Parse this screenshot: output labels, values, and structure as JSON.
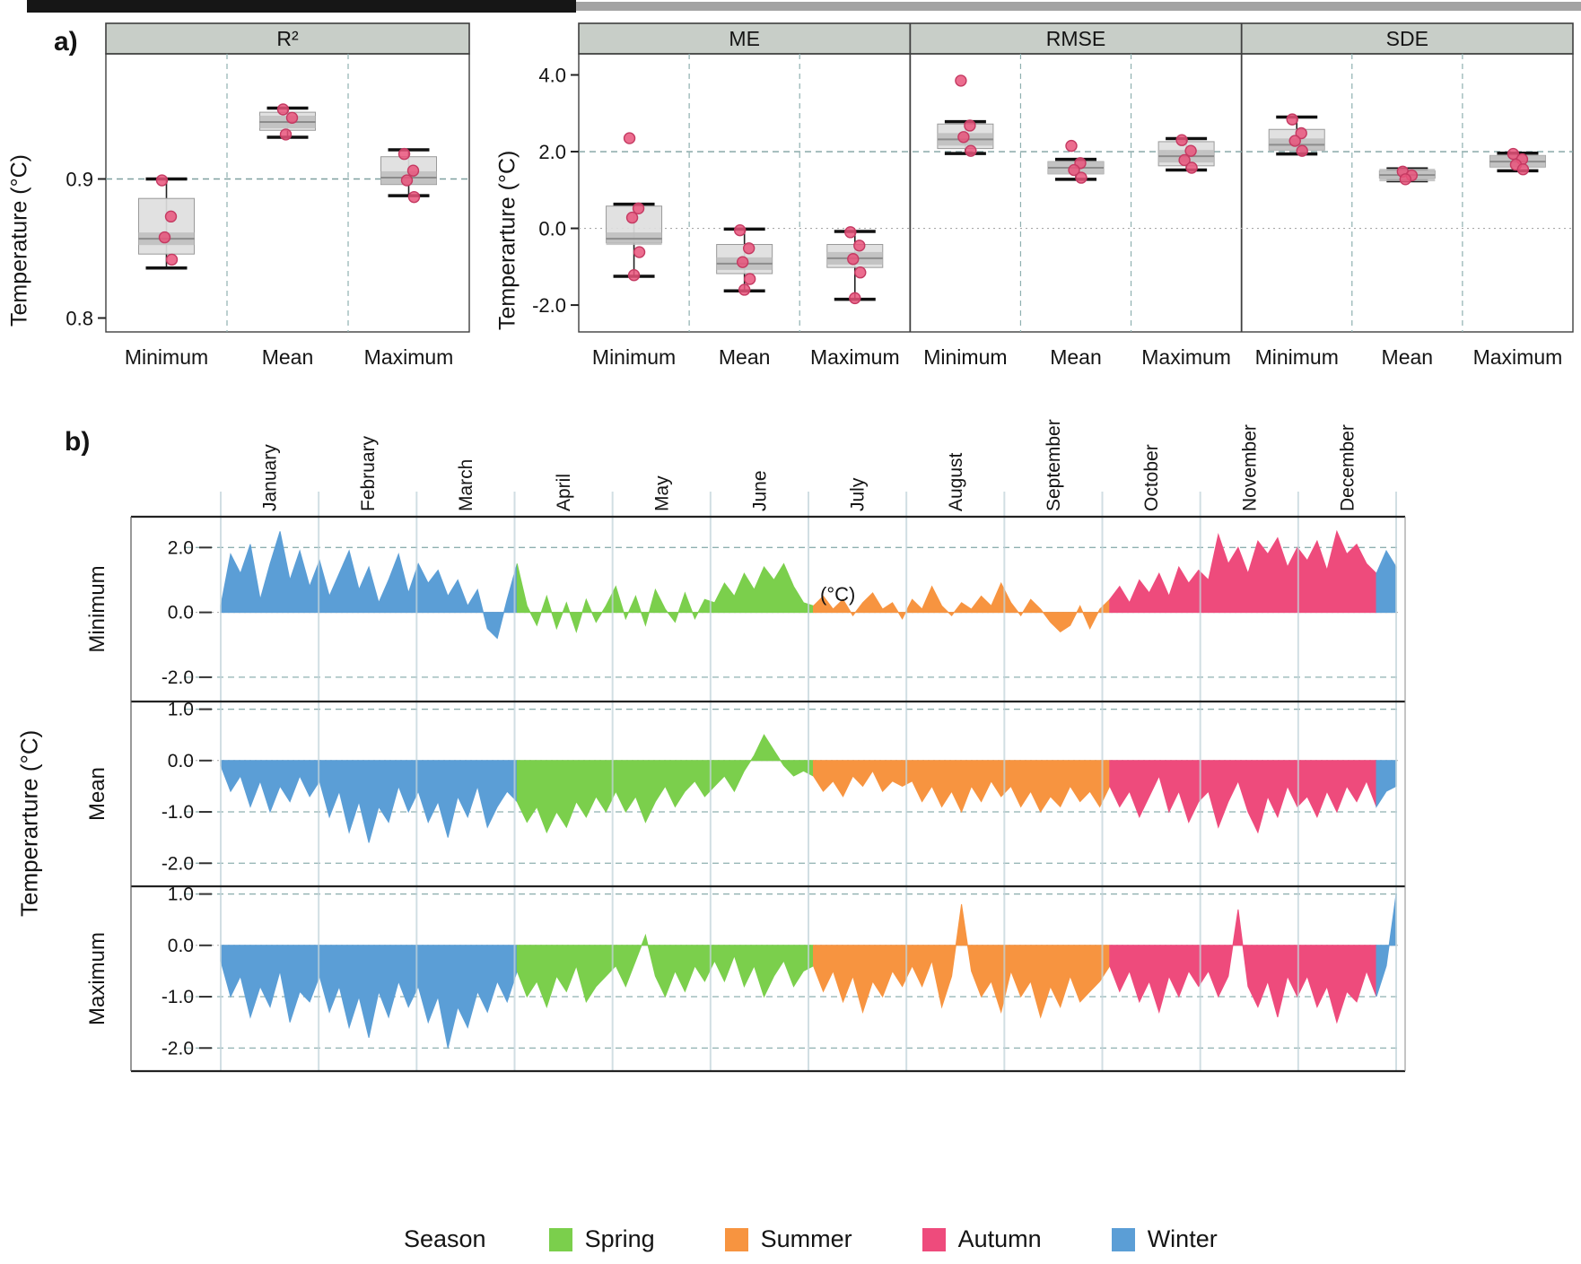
{
  "figure": {
    "panel_a_label": "a)",
    "panel_b_label": "b)"
  },
  "colors": {
    "spring": "#7bcf4c",
    "summer": "#f79440",
    "autumn": "#ee4b7c",
    "winter": "#5b9ed6",
    "point": "#e9537b",
    "point_edge": "#c43a62",
    "box_fill": "#dedede",
    "box_band": "#bdbdbd",
    "box_edge": "#9a9a9a",
    "median": "#8c8c8c",
    "header_bg": "#c8cec8",
    "frame": "#3f3f3f",
    "refline": "#7fa0a0",
    "grid_month": "#c2d4da",
    "grid_dashed": "#8fb0b0",
    "zero_dotted": "#a9a9a9",
    "top_bar_dark": "#161616",
    "top_bar_light": "#a3a3a3"
  },
  "chart_data": [
    {
      "id": "panel-a-validation-boxplots",
      "type": "box",
      "ylabel_left": "Temperature (°C)",
      "ylabel_right": "Temperarture (°C)",
      "categories": [
        "Minimum",
        "Mean",
        "Maximum"
      ],
      "left_panel": {
        "title": "R²",
        "yticks": [
          0.9,
          0.8
        ],
        "ylim": [
          0.79,
          0.99
        ],
        "reflines": [
          {
            "v": 0.9,
            "style": "dashed"
          }
        ],
        "groups": [
          {
            "label": "Minimum",
            "whisker_low": 0.836,
            "q1": 0.846,
            "median": 0.857,
            "q3": 0.886,
            "whisker_high": 0.9,
            "points": [
              0.899,
              0.873,
              0.858,
              0.842
            ]
          },
          {
            "label": "Mean",
            "whisker_low": 0.93,
            "q1": 0.935,
            "median": 0.941,
            "q3": 0.948,
            "whisker_high": 0.951,
            "points": [
              0.95,
              0.944,
              0.932
            ]
          },
          {
            "label": "Maximum",
            "whisker_low": 0.888,
            "q1": 0.896,
            "median": 0.901,
            "q3": 0.916,
            "whisker_high": 0.921,
            "points": [
              0.918,
              0.906,
              0.899,
              0.887
            ]
          }
        ]
      },
      "right_panels": {
        "yticks": [
          4.0,
          2.0,
          0.0,
          -2.0
        ],
        "ylim": [
          -2.7,
          4.55
        ],
        "reflines": [
          {
            "v": 2.0,
            "style": "dashed"
          },
          {
            "v": 0.0,
            "style": "dotted"
          }
        ],
        "panels": [
          {
            "title": "ME",
            "groups": [
              {
                "label": "Minimum",
                "whisker_low": -1.25,
                "q1": -0.38,
                "median": -0.27,
                "q3": 0.58,
                "whisker_high": 0.63,
                "points": [
                  2.35,
                  0.52,
                  0.28,
                  -0.62,
                  -1.22
                ]
              },
              {
                "label": "Mean",
                "whisker_low": -1.63,
                "q1": -1.18,
                "median": -0.92,
                "q3": -0.42,
                "whisker_high": -0.02,
                "points": [
                  -0.05,
                  -0.52,
                  -0.88,
                  -1.32,
                  -1.6
                ]
              },
              {
                "label": "Maximum",
                "whisker_low": -1.85,
                "q1": -1.02,
                "median": -0.78,
                "q3": -0.42,
                "whisker_high": -0.08,
                "points": [
                  -0.1,
                  -0.45,
                  -0.8,
                  -1.15,
                  -1.82
                ]
              }
            ]
          },
          {
            "title": "RMSE",
            "groups": [
              {
                "label": "Minimum",
                "whisker_low": 1.95,
                "q1": 2.08,
                "median": 2.32,
                "q3": 2.72,
                "whisker_high": 2.78,
                "points": [
                  3.85,
                  2.68,
                  2.38,
                  2.02
                ]
              },
              {
                "label": "Mean",
                "whisker_low": 1.28,
                "q1": 1.42,
                "median": 1.58,
                "q3": 1.74,
                "whisker_high": 1.8,
                "points": [
                  2.15,
                  1.7,
                  1.52,
                  1.32
                ]
              },
              {
                "label": "Maximum",
                "whisker_low": 1.52,
                "q1": 1.63,
                "median": 1.88,
                "q3": 2.26,
                "whisker_high": 2.34,
                "points": [
                  2.3,
                  2.02,
                  1.78,
                  1.58
                ]
              }
            ]
          },
          {
            "title": "SDE",
            "groups": [
              {
                "label": "Minimum",
                "whisker_low": 1.94,
                "q1": 2.04,
                "median": 2.18,
                "q3": 2.58,
                "whisker_high": 2.9,
                "points": [
                  2.84,
                  2.48,
                  2.28,
                  2.02
                ]
              },
              {
                "label": "Mean",
                "whisker_low": 1.24,
                "q1": 1.31,
                "median": 1.39,
                "q3": 1.5,
                "whisker_high": 1.55,
                "points": [
                  1.48,
                  1.38,
                  1.28
                ]
              },
              {
                "label": "Maximum",
                "whisker_low": 1.5,
                "q1": 1.6,
                "median": 1.74,
                "q3": 1.9,
                "whisker_high": 1.96,
                "points": [
                  1.94,
                  1.8,
                  1.66,
                  1.54
                ]
              }
            ]
          }
        ]
      }
    },
    {
      "id": "panel-b-daily-seasonal-series",
      "type": "area",
      "ylabel": "Temperarture (°C)",
      "annotation": "(°C)",
      "months": [
        "January",
        "February",
        "March",
        "April",
        "May",
        "June",
        "July",
        "August",
        "September",
        "October",
        "November",
        "December"
      ],
      "seasons_by_month": [
        "winter",
        "winter",
        "winter",
        "spring",
        "spring",
        "spring",
        "summer",
        "summer",
        "summer",
        "autumn",
        "autumn",
        "autumn"
      ],
      "winter_tail_points": 3,
      "points_per_month": 10,
      "rows": [
        {
          "label": "Minimum",
          "yticks": [
            2.0,
            0.0,
            -2.0
          ],
          "ylim": [
            -2.75,
            2.95
          ],
          "values": [
            0.2,
            1.8,
            1.2,
            2.1,
            0.4,
            1.5,
            2.5,
            1.0,
            1.9,
            0.8,
            1.6,
            0.5,
            1.2,
            1.9,
            0.7,
            1.4,
            0.3,
            1.0,
            1.8,
            0.6,
            1.5,
            0.9,
            1.3,
            0.5,
            1.0,
            0.2,
            0.7,
            -0.5,
            -0.8,
            0.4,
            1.5,
            0.2,
            -0.4,
            0.5,
            -0.5,
            0.3,
            -0.6,
            0.4,
            -0.3,
            0.2,
            0.8,
            -0.2,
            0.5,
            -0.4,
            0.7,
            0.1,
            -0.3,
            0.6,
            -0.2,
            0.4,
            0.3,
            0.9,
            0.5,
            1.2,
            0.7,
            1.4,
            1.0,
            1.5,
            0.8,
            0.3,
            0.2,
            0.5,
            0.1,
            0.4,
            -0.1,
            0.3,
            0.6,
            0.1,
            0.3,
            -0.2,
            0.4,
            0.1,
            0.8,
            0.2,
            -0.1,
            0.3,
            0.1,
            0.5,
            0.2,
            0.9,
            0.3,
            -0.1,
            0.4,
            0.1,
            -0.3,
            -0.6,
            -0.4,
            0.2,
            -0.5,
            0.1,
            0.4,
            0.8,
            0.3,
            1.0,
            0.6,
            1.2,
            0.5,
            1.4,
            0.9,
            1.3,
            1.0,
            2.4,
            1.5,
            2.0,
            1.2,
            2.2,
            1.8,
            2.3,
            1.4,
            2.0,
            1.6,
            2.2,
            1.3,
            2.5,
            1.8,
            2.1,
            1.5,
            1.2,
            1.9,
            1.4
          ]
        },
        {
          "label": "Mean",
          "yticks": [
            1.0,
            0.0,
            -1.0,
            -2.0
          ],
          "ylim": [
            -2.45,
            1.15
          ],
          "values": [
            -0.1,
            -0.6,
            -0.3,
            -0.9,
            -0.4,
            -1.0,
            -0.5,
            -0.8,
            -0.3,
            -0.7,
            -0.4,
            -1.1,
            -0.6,
            -1.4,
            -0.8,
            -1.6,
            -0.9,
            -1.2,
            -0.5,
            -1.0,
            -0.6,
            -1.2,
            -0.8,
            -1.5,
            -0.7,
            -1.1,
            -0.5,
            -1.3,
            -0.9,
            -0.6,
            -0.8,
            -1.2,
            -0.9,
            -1.4,
            -1.0,
            -1.3,
            -0.8,
            -1.1,
            -0.7,
            -1.0,
            -0.6,
            -1.0,
            -0.7,
            -1.2,
            -0.8,
            -0.5,
            -0.9,
            -0.6,
            -0.4,
            -0.7,
            -0.5,
            -0.3,
            -0.6,
            -0.2,
            0.1,
            0.5,
            0.2,
            -0.1,
            -0.3,
            -0.2,
            -0.3,
            -0.6,
            -0.4,
            -0.7,
            -0.3,
            -0.5,
            -0.2,
            -0.6,
            -0.4,
            -0.5,
            -0.4,
            -0.8,
            -0.5,
            -0.9,
            -0.6,
            -1.0,
            -0.5,
            -0.8,
            -0.4,
            -0.7,
            -0.5,
            -0.9,
            -0.6,
            -1.0,
            -0.7,
            -0.9,
            -0.5,
            -0.8,
            -0.6,
            -0.9,
            -0.5,
            -0.9,
            -0.6,
            -1.1,
            -0.7,
            -0.3,
            -1.0,
            -0.6,
            -1.2,
            -0.8,
            -0.6,
            -1.3,
            -0.8,
            -0.4,
            -1.0,
            -1.4,
            -0.7,
            -1.1,
            -0.5,
            -0.9,
            -0.7,
            -1.1,
            -0.6,
            -1.0,
            -0.5,
            -0.8,
            -0.4,
            -0.9,
            -0.6,
            -0.5
          ]
        },
        {
          "label": "Maximum",
          "yticks": [
            1.0,
            0.0,
            -1.0,
            -2.0
          ],
          "ylim": [
            -2.45,
            1.15
          ],
          "values": [
            -0.3,
            -1.0,
            -0.6,
            -1.4,
            -0.8,
            -1.2,
            -0.5,
            -1.5,
            -0.9,
            -1.1,
            -0.6,
            -1.3,
            -0.8,
            -1.6,
            -1.0,
            -1.8,
            -0.9,
            -1.4,
            -0.7,
            -1.2,
            -0.8,
            -1.5,
            -1.0,
            -2.0,
            -1.2,
            -1.6,
            -0.9,
            -1.3,
            -0.7,
            -1.1,
            -0.5,
            -1.0,
            -0.7,
            -1.2,
            -0.6,
            -0.9,
            -0.4,
            -1.1,
            -0.8,
            -0.6,
            -0.4,
            -0.8,
            -0.3,
            0.2,
            -0.6,
            -1.0,
            -0.5,
            -0.9,
            -0.4,
            -0.7,
            -0.3,
            -0.7,
            -0.2,
            -0.8,
            -0.4,
            -1.0,
            -0.6,
            -0.3,
            -0.8,
            -0.5,
            -0.4,
            -0.9,
            -0.5,
            -1.1,
            -0.6,
            -1.3,
            -0.7,
            -1.0,
            -0.5,
            -0.8,
            -0.4,
            -0.8,
            -0.3,
            -1.2,
            -0.6,
            0.8,
            -0.5,
            -1.0,
            -0.7,
            -1.3,
            -0.5,
            -1.0,
            -0.7,
            -1.4,
            -0.8,
            -1.2,
            -0.6,
            -1.1,
            -0.9,
            -0.7,
            -0.4,
            -0.9,
            -0.5,
            -1.1,
            -0.7,
            -1.3,
            -0.6,
            -1.0,
            -0.5,
            -0.8,
            -0.5,
            -1.0,
            -0.6,
            0.7,
            -0.8,
            -1.2,
            -0.7,
            -1.4,
            -0.6,
            -1.0,
            -0.6,
            -1.2,
            -0.8,
            -1.5,
            -0.9,
            -1.1,
            -0.5,
            -1.0,
            -0.4,
            1.0
          ]
        }
      ],
      "legend": {
        "title": "Season",
        "items": [
          {
            "label": "Spring",
            "color": "spring"
          },
          {
            "label": "Summer",
            "color": "summer"
          },
          {
            "label": "Autumn",
            "color": "autumn"
          },
          {
            "label": "Winter",
            "color": "winter"
          }
        ]
      }
    }
  ]
}
